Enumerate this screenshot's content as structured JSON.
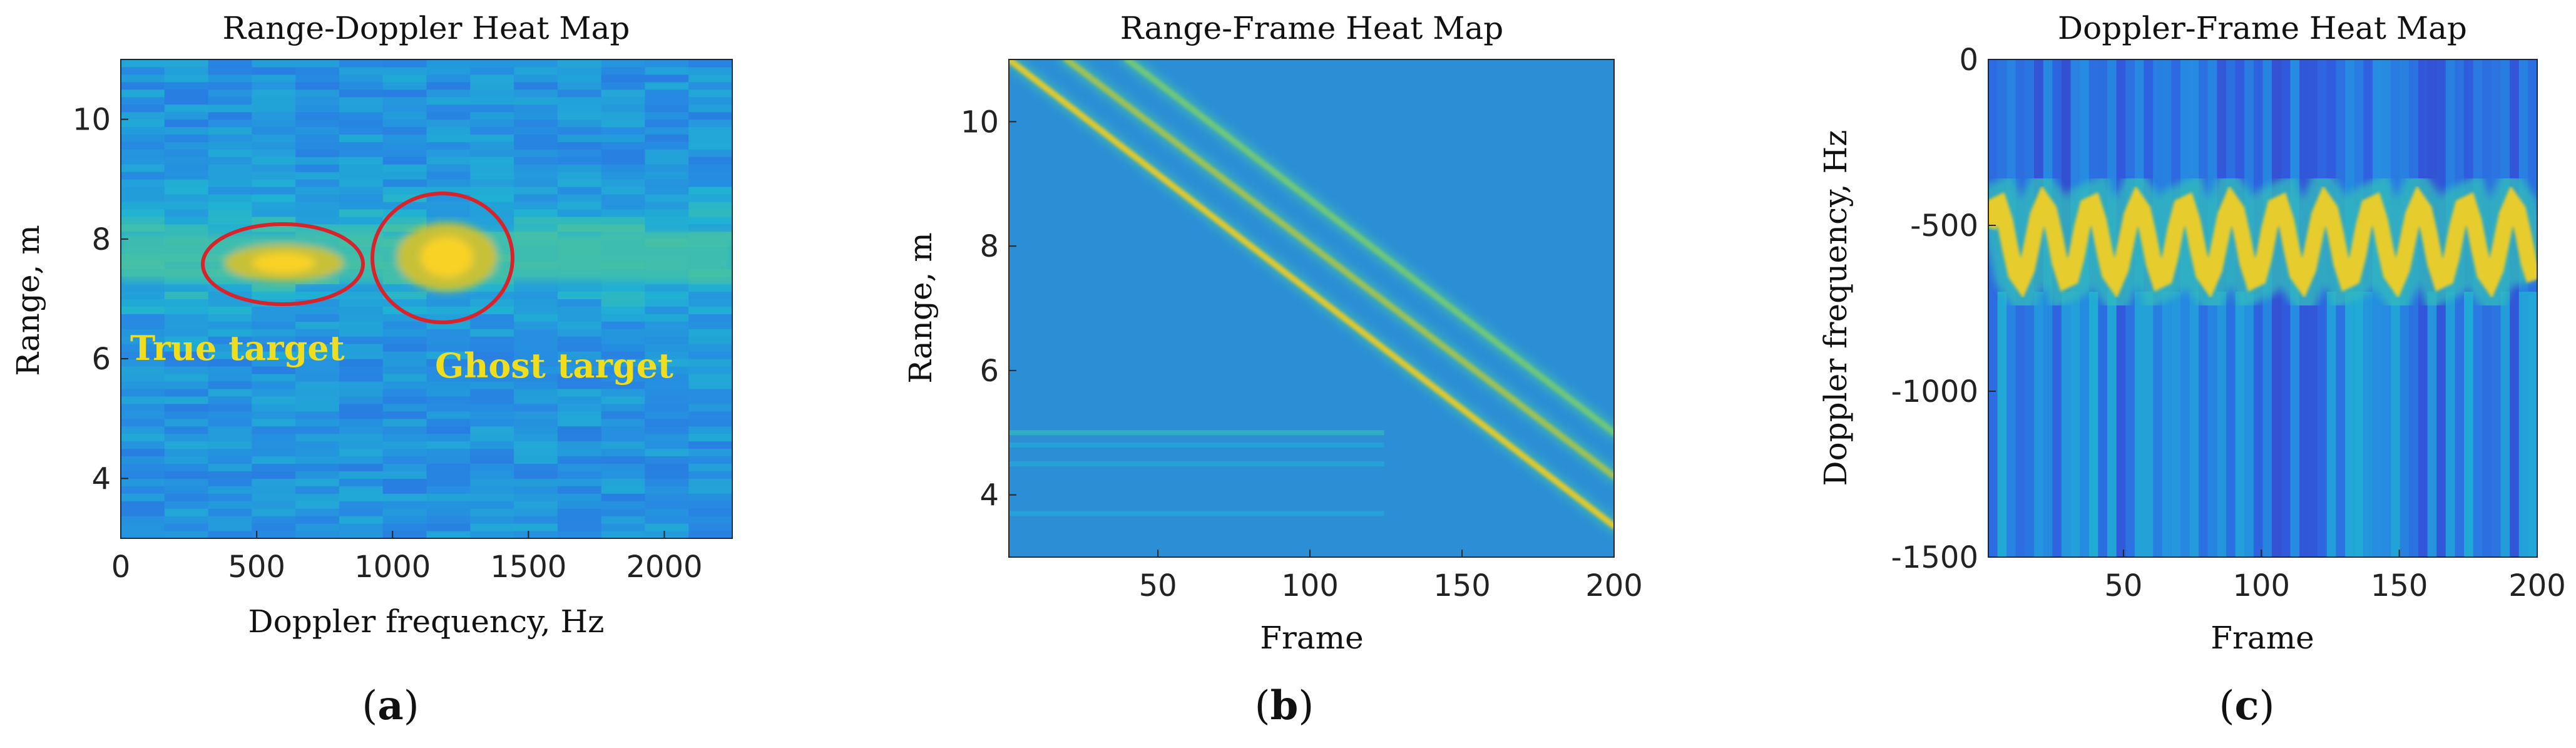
{
  "chart_data": [
    {
      "type": "heatmap",
      "panel": "a",
      "title": "Range-Doppler Heat Map",
      "xlabel": "Doppler frequency, Hz",
      "ylabel": "Range, m",
      "xlim": [
        0,
        2250
      ],
      "ylim": [
        3,
        11
      ],
      "xticks": [
        0,
        500,
        1000,
        1500,
        2000
      ],
      "yticks": [
        4,
        6,
        8,
        10
      ],
      "colormap": "parula",
      "features": [
        {
          "label": "True target",
          "center_x": 600,
          "center_y": 7.6,
          "highlighted": true
        },
        {
          "label": "Ghost target",
          "center_x": 1200,
          "center_y": 7.7,
          "highlighted": true
        }
      ],
      "annotations": [
        "True target",
        "Ghost target"
      ],
      "annotation_color": "#f0de1e",
      "circle_color": "#d9232b"
    },
    {
      "type": "heatmap",
      "panel": "b",
      "title": "Range-Frame Heat Map",
      "xlabel": "Frame",
      "ylabel": "Range, m",
      "xlim": [
        1,
        200
      ],
      "ylim": [
        3,
        11
      ],
      "xticks": [
        50,
        100,
        150,
        200
      ],
      "yticks": [
        4,
        6,
        8,
        10
      ],
      "colormap": "parula",
      "tracks": [
        {
          "frame_start": 1,
          "range_start": 11.0,
          "frame_end": 200,
          "range_end": 3.5
        },
        {
          "frame_start": 20,
          "range_start": 11.0,
          "frame_end": 200,
          "range_end": 4.3
        },
        {
          "frame_start": 40,
          "range_start": 11.0,
          "frame_end": 200,
          "range_end": 5.0
        }
      ],
      "static_clutter_ranges": [
        5.0,
        4.8,
        4.5,
        3.7
      ]
    },
    {
      "type": "heatmap",
      "panel": "c",
      "title": "Doppler-Frame Heat Map",
      "xlabel": "Frame",
      "ylabel": "Doppler frequency, Hz",
      "xlim": [
        1,
        200
      ],
      "ylim": [
        -1500,
        0
      ],
      "xticks": [
        50,
        100,
        150,
        200
      ],
      "yticks": [
        0,
        -500,
        -1000,
        -1500
      ],
      "colormap": "parula",
      "dominant_doppler_hz": -550,
      "oscillation_amplitude_hz": 120,
      "oscillation_period_frames": 17
    }
  ],
  "panel_labels": [
    "a",
    "b",
    "c"
  ]
}
